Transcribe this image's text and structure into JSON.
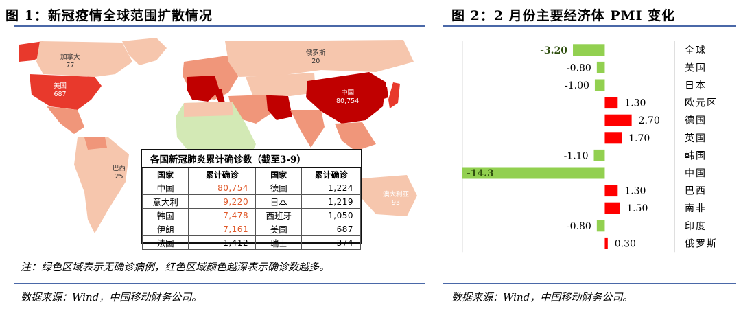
{
  "fig1": {
    "title": "图 1：新冠疫情全球范围扩散情况",
    "map_labels": [
      {
        "name": "加拿大",
        "value": "77"
      },
      {
        "name": "俄罗斯",
        "value": "20"
      },
      {
        "name": "美国",
        "value": "687"
      },
      {
        "name": "中国",
        "value": "80,754"
      },
      {
        "name": "巴西",
        "value": "25"
      },
      {
        "name": "澳大利亚",
        "value": "93"
      }
    ],
    "table": {
      "caption": "各国新冠肺炎累计确诊数（截至3-9）",
      "headers": [
        "国家",
        "累计确诊",
        "国家",
        "累计确诊"
      ],
      "rows": [
        [
          "中国",
          "80,754",
          "德国",
          "1,224"
        ],
        [
          "意大利",
          "9,220",
          "日本",
          "1,219"
        ],
        [
          "韩国",
          "7,478",
          "西班牙",
          "1,050"
        ],
        [
          "伊朗",
          "7,161",
          "美国",
          "687"
        ],
        [
          "法国",
          "1,412",
          "瑞士",
          "374"
        ]
      ]
    },
    "note": "注：绿色区域表示无确诊病例，红色区域颜色越深表示确诊数越多。",
    "source": "数据来源：Wind，中国移动财务公司。"
  },
  "fig2": {
    "title": "图 2：2 月份主要经济体 PMI 变化",
    "source": "数据来源：Wind，中国移动财务公司。"
  },
  "colors": {
    "negative": "#92d050",
    "positive": "#ff0000",
    "rule": "#4a68a8",
    "ocean": "#ffffff",
    "land_light": "#f6c6ad",
    "land_mid": "#f0967a",
    "land_dark": "#e8392c",
    "land_darkest": "#c00000",
    "land_green": "#d3e9b5"
  },
  "chart_data": {
    "type": "bar",
    "orientation": "horizontal",
    "title": "图 2：2 月份主要经济体 PMI 变化",
    "categories": [
      "全球",
      "美国",
      "日本",
      "欧元区",
      "德国",
      "英国",
      "韩国",
      "中国",
      "巴西",
      "南非",
      "印度",
      "俄罗斯"
    ],
    "values": [
      -3.2,
      -0.8,
      -1.0,
      1.3,
      2.7,
      1.7,
      -1.1,
      -14.3,
      1.3,
      1.5,
      -0.8,
      0.3
    ],
    "value_labels": [
      "-3.20",
      "-0.80",
      "-1.00",
      "1.30",
      "2.70",
      "1.70",
      "-1.10",
      "-14.3",
      "1.30",
      "1.50",
      "-0.80",
      "0.30"
    ],
    "xlim": [
      -14.3,
      7
    ],
    "grid": false
  }
}
